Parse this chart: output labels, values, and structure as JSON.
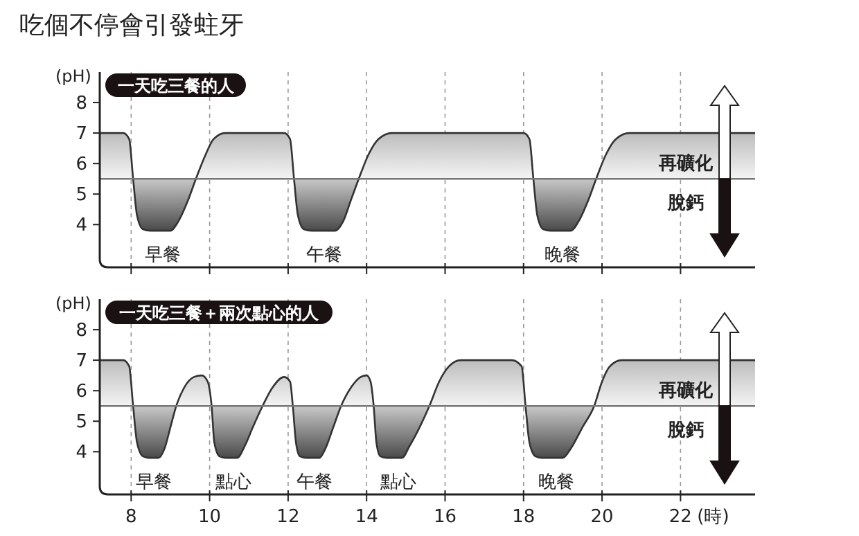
{
  "chart_data": [
    {
      "type": "line",
      "title": "吃個不停會引發蛀牙",
      "subtitle": "一天吃三餐的人",
      "ylabel": "(pH)",
      "xlim": [
        7.2,
        23.9
      ],
      "ylim": [
        2.6,
        9
      ],
      "xticks": [
        8,
        10,
        12,
        14,
        16,
        18,
        20,
        22
      ],
      "yticks": [
        4,
        5,
        6,
        7,
        8
      ],
      "tick_labels": "y",
      "grid": "x",
      "ref_lines": [
        {
          "axis": "y",
          "value": 5.5,
          "color": "#777777"
        }
      ],
      "series": [
        {
          "color": "#333333",
          "x": [
            7.2,
            7.8,
            7.95,
            8.05,
            8.15,
            8.3,
            8.5,
            9.0,
            9.2,
            9.45,
            9.65,
            9.9,
            10.1,
            10.4,
            11.9,
            12.05,
            12.15,
            12.25,
            12.4,
            12.6,
            13.2,
            13.4,
            13.6,
            13.8,
            14.05,
            14.3,
            14.65,
            18.0,
            18.15,
            18.25,
            18.35,
            18.5,
            18.7,
            19.2,
            19.4,
            19.65,
            19.85,
            20.1,
            20.35,
            20.7,
            23.9
          ],
          "values": [
            7,
            7,
            6.8,
            5.5,
            4.3,
            3.85,
            3.8,
            3.8,
            4.1,
            4.8,
            5.5,
            6.3,
            6.8,
            7,
            7,
            6.8,
            5.5,
            4.3,
            3.85,
            3.8,
            3.8,
            4.1,
            4.8,
            5.5,
            6.3,
            6.8,
            7,
            7,
            6.8,
            5.5,
            4.3,
            3.85,
            3.8,
            3.8,
            4.1,
            4.8,
            5.5,
            6.3,
            6.8,
            7,
            7
          ],
          "lower": [
            5.5,
            5.5,
            5.5,
            5.5,
            5.5,
            5.5,
            5.5,
            5.5,
            5.5,
            5.5,
            5.5,
            5.5,
            5.5,
            5.5,
            5.5,
            5.5,
            5.5,
            5.5,
            5.5,
            5.5,
            5.5,
            5.5,
            5.5,
            5.5,
            5.5,
            5.5,
            5.5,
            5.5,
            5.5,
            5.5,
            5.5,
            5.5,
            5.5,
            5.5,
            5.5,
            5.5,
            5.5,
            5.5,
            5.5,
            5.5,
            5.5
          ],
          "upper": [
            7,
            7,
            6.8,
            5.5,
            4.3,
            3.85,
            3.8,
            3.8,
            4.1,
            4.8,
            5.5,
            6.3,
            6.8,
            7,
            7,
            6.8,
            5.5,
            4.3,
            3.85,
            3.8,
            3.8,
            4.1,
            4.8,
            5.5,
            6.3,
            6.8,
            7,
            7,
            6.8,
            5.5,
            4.3,
            3.85,
            3.8,
            3.8,
            4.1,
            4.8,
            5.5,
            6.3,
            6.8,
            7,
            7
          ]
        }
      ],
      "annotations": [
        "早餐",
        "午餐",
        "晚餐",
        "再礦化",
        "脫鈣"
      ]
    },
    {
      "type": "line",
      "subtitle": "一天吃三餐＋兩次點心的人",
      "ylabel": "(pH)",
      "xlabel": "(時)",
      "xlim": [
        7.2,
        23.9
      ],
      "ylim": [
        2.6,
        9
      ],
      "xticks": [
        8,
        10,
        12,
        14,
        16,
        18,
        20,
        22
      ],
      "yticks": [
        4,
        5,
        6,
        7,
        8
      ],
      "grid": "x",
      "ref_lines": [
        {
          "axis": "y",
          "value": 5.5,
          "color": "#777777"
        }
      ],
      "series": [
        {
          "color": "#333333",
          "x": [
            7.2,
            7.8,
            7.95,
            8.05,
            8.15,
            8.3,
            8.45,
            8.7,
            8.85,
            9.0,
            9.15,
            9.35,
            9.6,
            9.8,
            9.95,
            10.05,
            10.12,
            10.25,
            10.4,
            10.7,
            10.9,
            11.1,
            11.35,
            11.6,
            11.9,
            12.05,
            12.12,
            12.2,
            12.3,
            12.45,
            12.8,
            12.95,
            13.15,
            13.35,
            13.6,
            13.85,
            14.0,
            14.1,
            14.18,
            14.25,
            14.35,
            14.5,
            14.9,
            15.1,
            15.35,
            15.6,
            15.85,
            16.1,
            16.4,
            17.7,
            17.95,
            18.05,
            18.15,
            18.3,
            18.45,
            19.0,
            19.2,
            19.5,
            19.8,
            20.0,
            20.2,
            20.5,
            23.9
          ],
          "values": [
            7,
            7,
            6.8,
            5.5,
            4.3,
            3.85,
            3.8,
            3.8,
            4.1,
            4.8,
            5.5,
            6.1,
            6.45,
            6.5,
            6.3,
            5.5,
            4.3,
            3.85,
            3.8,
            3.8,
            4.2,
            4.8,
            5.5,
            6.1,
            6.45,
            6.3,
            5.5,
            4.3,
            3.85,
            3.8,
            3.8,
            4.1,
            4.8,
            5.5,
            6.1,
            6.45,
            6.5,
            6.3,
            5.5,
            4.3,
            3.85,
            3.8,
            3.8,
            4.2,
            4.8,
            5.5,
            6.3,
            6.8,
            7,
            7,
            6.8,
            5.5,
            4.3,
            3.85,
            3.8,
            3.8,
            4.1,
            4.8,
            5.5,
            6.3,
            6.8,
            7,
            7
          ],
          "lower": [
            5.5,
            5.5,
            5.5,
            5.5,
            5.5,
            5.5,
            5.5,
            5.5,
            5.5,
            5.5,
            5.5,
            5.5,
            5.5,
            5.5,
            5.5,
            5.5,
            5.5,
            5.5,
            5.5,
            5.5,
            5.5,
            5.5,
            5.5,
            5.5,
            5.5,
            5.5,
            5.5,
            5.5,
            5.5,
            5.5,
            5.5,
            5.5,
            5.5,
            5.5,
            5.5,
            5.5,
            5.5,
            5.5,
            5.5,
            5.5,
            5.5,
            5.5,
            5.5,
            5.5,
            5.5,
            5.5,
            5.5,
            5.5,
            5.5,
            5.5,
            5.5,
            5.5,
            5.5,
            5.5,
            5.5,
            5.5,
            5.5,
            5.5,
            5.5,
            5.5,
            5.5,
            5.5,
            5.5
          ],
          "upper": [
            7,
            7,
            6.8,
            5.5,
            4.3,
            3.85,
            3.8,
            3.8,
            4.1,
            4.8,
            5.5,
            6.1,
            6.45,
            6.5,
            6.3,
            5.5,
            4.3,
            3.85,
            3.8,
            3.8,
            4.2,
            4.8,
            5.5,
            6.1,
            6.45,
            6.3,
            5.5,
            4.3,
            3.85,
            3.8,
            3.8,
            4.1,
            4.8,
            5.5,
            6.1,
            6.45,
            6.5,
            6.3,
            5.5,
            4.3,
            3.85,
            3.8,
            3.8,
            4.2,
            4.8,
            5.5,
            6.3,
            6.8,
            7,
            7,
            6.8,
            5.5,
            4.3,
            3.85,
            3.8,
            3.8,
            4.1,
            4.8,
            5.5,
            6.3,
            6.8,
            7,
            7
          ]
        }
      ],
      "annotations": [
        "早餐",
        "點心",
        "午餐",
        "點心",
        "晚餐",
        "再礦化",
        "脫鈣"
      ]
    }
  ]
}
